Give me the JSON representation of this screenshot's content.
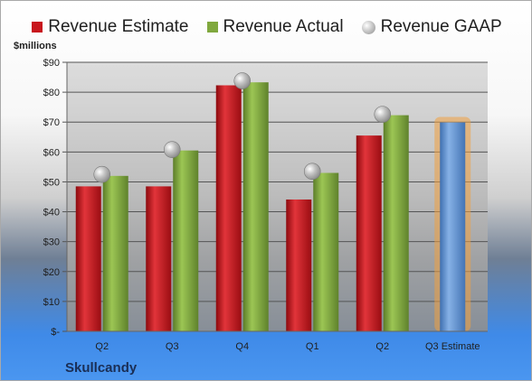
{
  "chart_data": {
    "type": "bar",
    "title": "",
    "ylabel": "$millions",
    "ylim": [
      0,
      90
    ],
    "yticks": [
      "$-",
      "$10",
      "$20",
      "$30",
      "$40",
      "$50",
      "$60",
      "$70",
      "$80",
      "$90"
    ],
    "categories": [
      "Q2",
      "Q3",
      "Q4",
      "Q1",
      "Q2",
      "Q3 Estimate"
    ],
    "series": [
      {
        "name": "Revenue Estimate",
        "type": "bar",
        "values": [
          48.5,
          48.5,
          82.3,
          44.1,
          65.5,
          null
        ],
        "color": "#c8171d"
      },
      {
        "name": "Revenue Actual",
        "type": "bar",
        "values": [
          52.0,
          60.5,
          83.3,
          53.0,
          72.3,
          null
        ],
        "color": "#80a83e"
      },
      {
        "name": "Revenue GAAP",
        "type": "scatter",
        "values": [
          52.5,
          60.8,
          83.8,
          53.5,
          72.6,
          null
        ],
        "color": "#b5b5b5"
      },
      {
        "name": "Q3 Estimate",
        "type": "bar",
        "values": [
          null,
          null,
          null,
          null,
          null,
          69.9
        ],
        "color": "#5b8fd0"
      }
    ],
    "grid": true,
    "legend": "top-center"
  },
  "legend": [
    {
      "label": "Revenue Estimate",
      "color": "#c8171d",
      "shape": "square"
    },
    {
      "label": "Revenue Actual",
      "color": "#80a83e",
      "shape": "square"
    },
    {
      "label": "Revenue GAAP",
      "color": "#b5b5b5",
      "shape": "circle"
    }
  ],
  "unit_label": "$millions",
  "company": "Skullcandy"
}
